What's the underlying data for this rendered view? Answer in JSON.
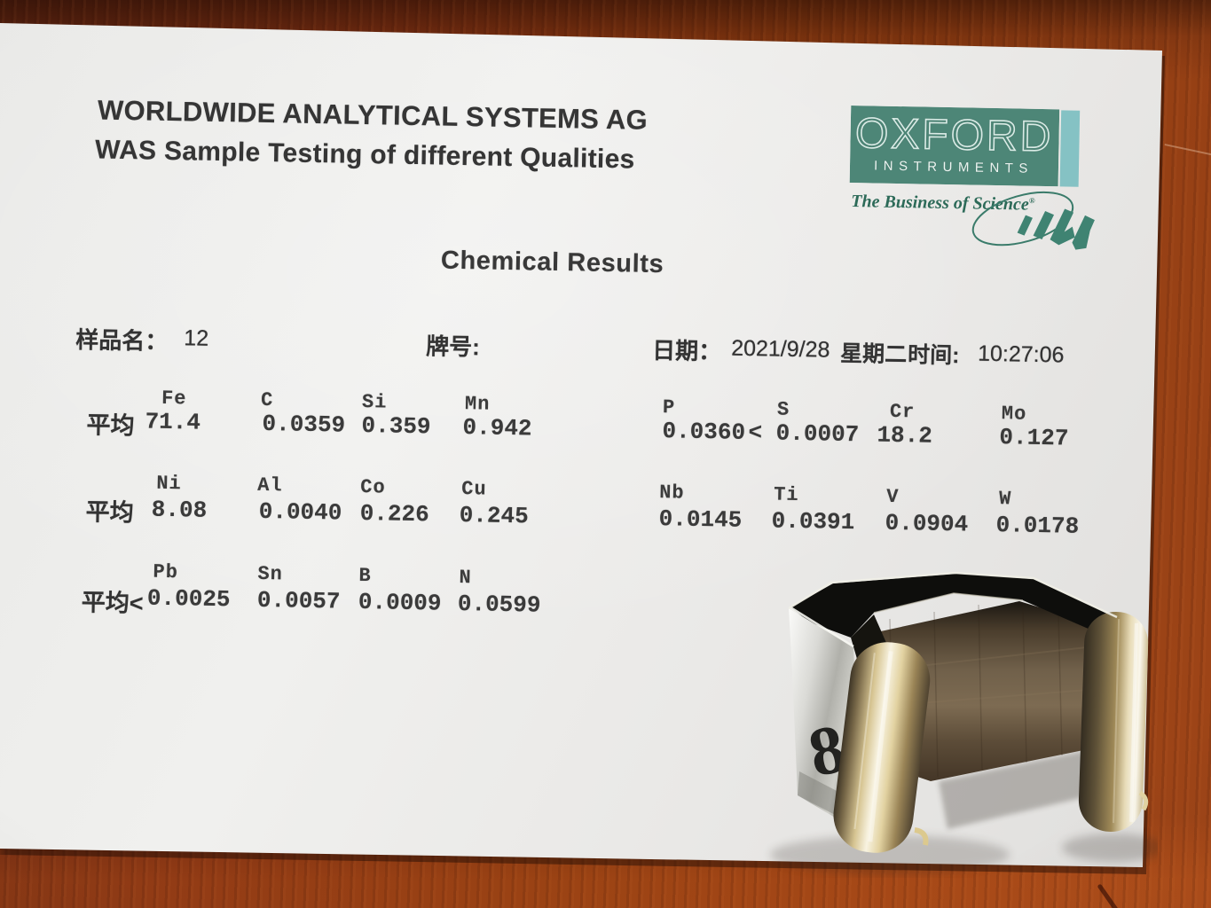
{
  "document": {
    "header": {
      "line1": "WORLDWIDE ANALYTICAL SYSTEMS AG",
      "line2": "WAS Sample Testing of different Qualities"
    },
    "logo": {
      "brand": "OXFORD",
      "brand_sub": "INSTRUMENTS",
      "tagline": "The Business of Science",
      "tagline_mark": "®",
      "mark": "was-swoosh",
      "colors": {
        "box_green": "#4d8677",
        "accent_teal": "#85c2c4",
        "tagline_green": "#2c6a58"
      }
    },
    "title": "Chemical Results",
    "info": {
      "sample_label": "样品名：",
      "sample_value": "12",
      "grade_label": "牌号:",
      "date_label": "日期：",
      "date_value": "2021/9/28",
      "weekday": "星期二",
      "time_label": "时间:",
      "time_value": "10:27:06"
    },
    "table": {
      "rows": [
        {
          "label": "平均",
          "elements": [
            "Fe",
            "C",
            "Si",
            "Mn",
            "P",
            "S",
            "Cr",
            "Mo"
          ],
          "values": [
            "71.4",
            "0.0359",
            "0.359",
            "0.942",
            "0.0360",
            "< 0.0007",
            "18.2",
            "0.127"
          ]
        },
        {
          "label": "平均",
          "elements": [
            "Ni",
            "Al",
            "Co",
            "Cu",
            "Nb",
            "Ti",
            "V",
            "W"
          ],
          "values": [
            "8.08",
            "0.0040",
            "0.226",
            "0.245",
            "0.0145",
            "0.0391",
            "0.0904",
            "0.0178"
          ]
        },
        {
          "label": "平均<",
          "elements": [
            "Pb",
            "Sn",
            "B",
            "N"
          ],
          "values": [
            "0.0025",
            "0.0057",
            "0.0009",
            "0.0599"
          ]
        }
      ]
    }
  },
  "scene": {
    "metal_part_marking": "8"
  }
}
